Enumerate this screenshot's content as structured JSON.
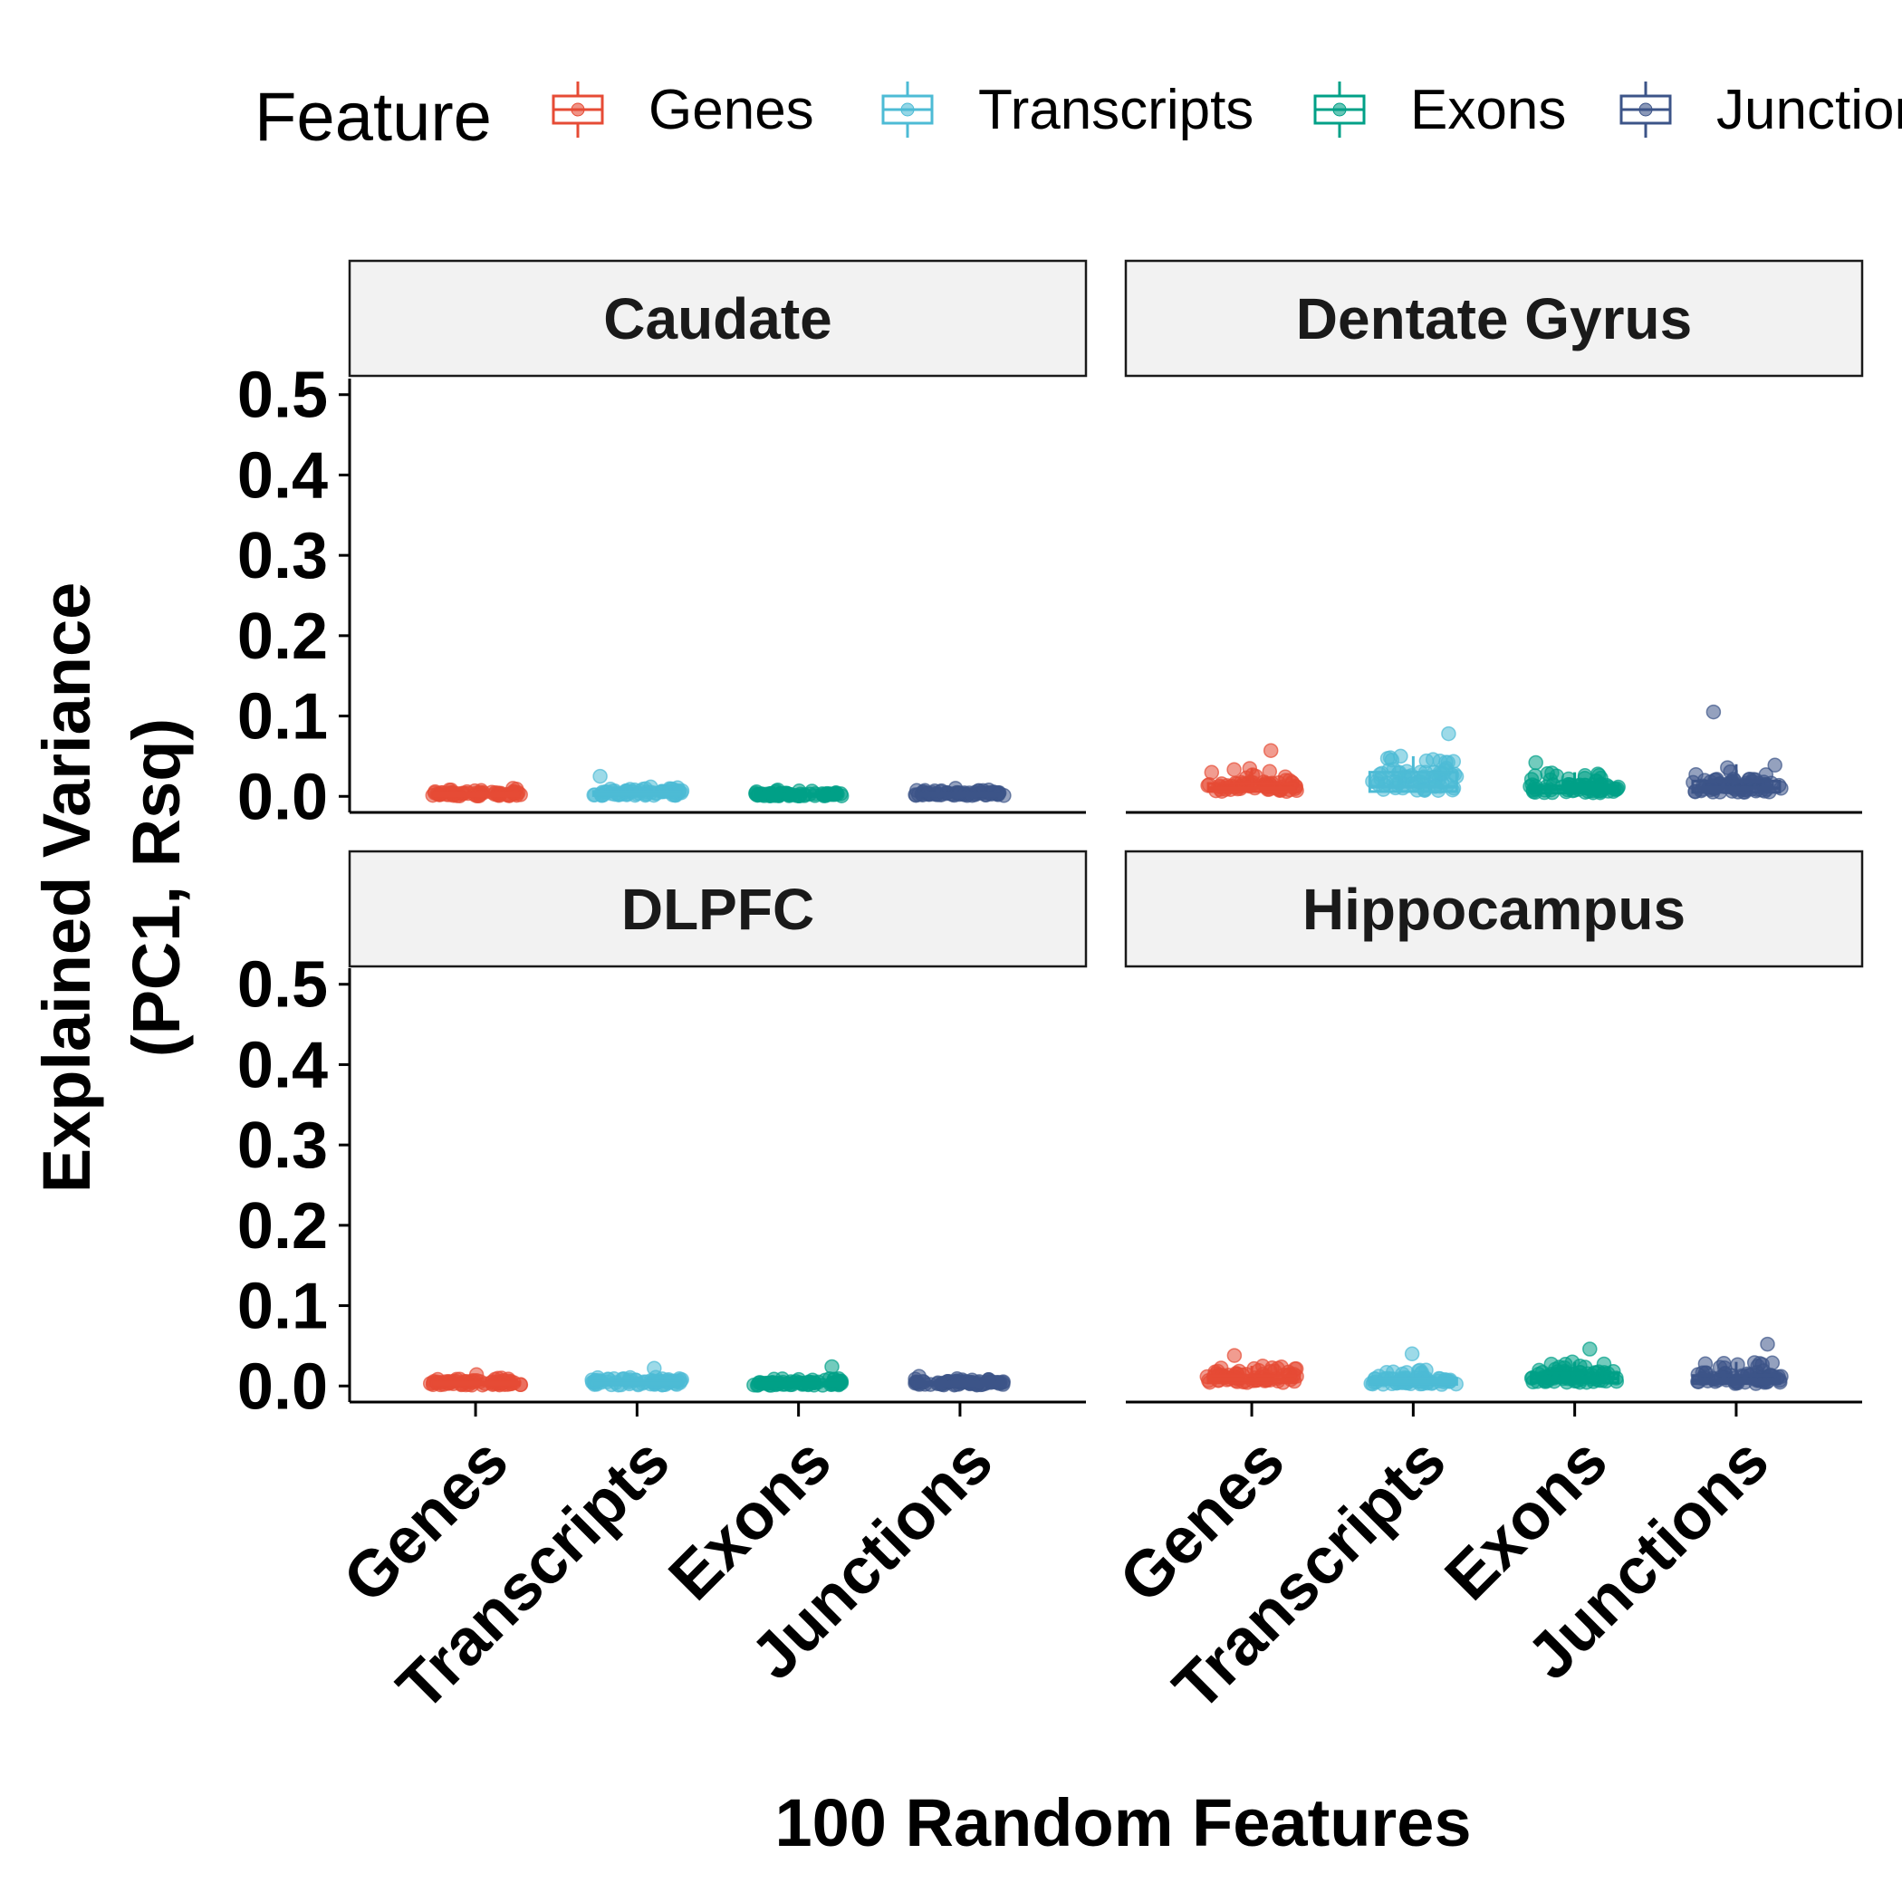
{
  "chart_data": {
    "type": "boxplot",
    "legend": {
      "title": "Feature",
      "position": "top",
      "items": [
        {
          "label": "Genes",
          "color": "#E64B35"
        },
        {
          "label": "Transcripts",
          "color": "#4DBBD5"
        },
        {
          "label": "Exons",
          "color": "#00A087"
        },
        {
          "label": "Junctions",
          "color": "#3C5488"
        }
      ]
    },
    "xlabel": "100 Random Features",
    "ylabel_lines": [
      "Explained Variance",
      "(PC1, Rsq)"
    ],
    "categories": [
      "Genes",
      "Transcripts",
      "Exons",
      "Junctions"
    ],
    "yticks": [
      "0.0",
      "0.1",
      "0.2",
      "0.3",
      "0.4",
      "0.5"
    ],
    "ylim": [
      -0.02,
      0.52
    ],
    "facets": [
      {
        "name": "Caudate",
        "series": [
          {
            "category": "Genes",
            "q1": 0.0005,
            "median": 0.002,
            "q3": 0.004,
            "whisker_high": 0.009,
            "max_point": 0.01
          },
          {
            "category": "Transcripts",
            "q1": 0.001,
            "median": 0.003,
            "q3": 0.006,
            "whisker_high": 0.012,
            "max_point": 0.025
          },
          {
            "category": "Exons",
            "q1": 0.0005,
            "median": 0.0015,
            "q3": 0.003,
            "whisker_high": 0.007,
            "max_point": 0.008
          },
          {
            "category": "Junctions",
            "q1": 0.001,
            "median": 0.002,
            "q3": 0.004,
            "whisker_high": 0.008,
            "max_point": 0.01
          }
        ]
      },
      {
        "name": "Dentate Gyrus",
        "series": [
          {
            "category": "Genes",
            "q1": 0.006,
            "median": 0.01,
            "q3": 0.016,
            "whisker_high": 0.035,
            "max_point": 0.057
          },
          {
            "category": "Transcripts",
            "q1": 0.006,
            "median": 0.012,
            "q3": 0.03,
            "whisker_high": 0.05,
            "max_point": 0.078
          },
          {
            "category": "Exons",
            "q1": 0.004,
            "median": 0.009,
            "q3": 0.013,
            "whisker_high": 0.03,
            "max_point": 0.042
          },
          {
            "category": "Junctions",
            "q1": 0.005,
            "median": 0.01,
            "q3": 0.019,
            "whisker_high": 0.04,
            "max_point": 0.105
          }
        ]
      },
      {
        "name": "DLPFC",
        "series": [
          {
            "category": "Genes",
            "q1": 0.001,
            "median": 0.003,
            "q3": 0.005,
            "whisker_high": 0.01,
            "max_point": 0.014
          },
          {
            "category": "Transcripts",
            "q1": 0.001,
            "median": 0.003,
            "q3": 0.006,
            "whisker_high": 0.012,
            "max_point": 0.022
          },
          {
            "category": "Exons",
            "q1": 0.0008,
            "median": 0.002,
            "q3": 0.004,
            "whisker_high": 0.009,
            "max_point": 0.024
          },
          {
            "category": "Junctions",
            "q1": 0.001,
            "median": 0.003,
            "q3": 0.005,
            "whisker_high": 0.009,
            "max_point": 0.012
          }
        ]
      },
      {
        "name": "Hippocampus",
        "series": [
          {
            "category": "Genes",
            "q1": 0.004,
            "median": 0.008,
            "q3": 0.013,
            "whisker_high": 0.025,
            "max_point": 0.038
          },
          {
            "category": "Transcripts",
            "q1": 0.002,
            "median": 0.005,
            "q3": 0.009,
            "whisker_high": 0.02,
            "max_point": 0.04
          },
          {
            "category": "Exons",
            "q1": 0.004,
            "median": 0.009,
            "q3": 0.016,
            "whisker_high": 0.03,
            "max_point": 0.046
          },
          {
            "category": "Junctions",
            "q1": 0.003,
            "median": 0.007,
            "q3": 0.013,
            "whisker_high": 0.03,
            "max_point": 0.052
          }
        ]
      }
    ],
    "grid": false
  }
}
